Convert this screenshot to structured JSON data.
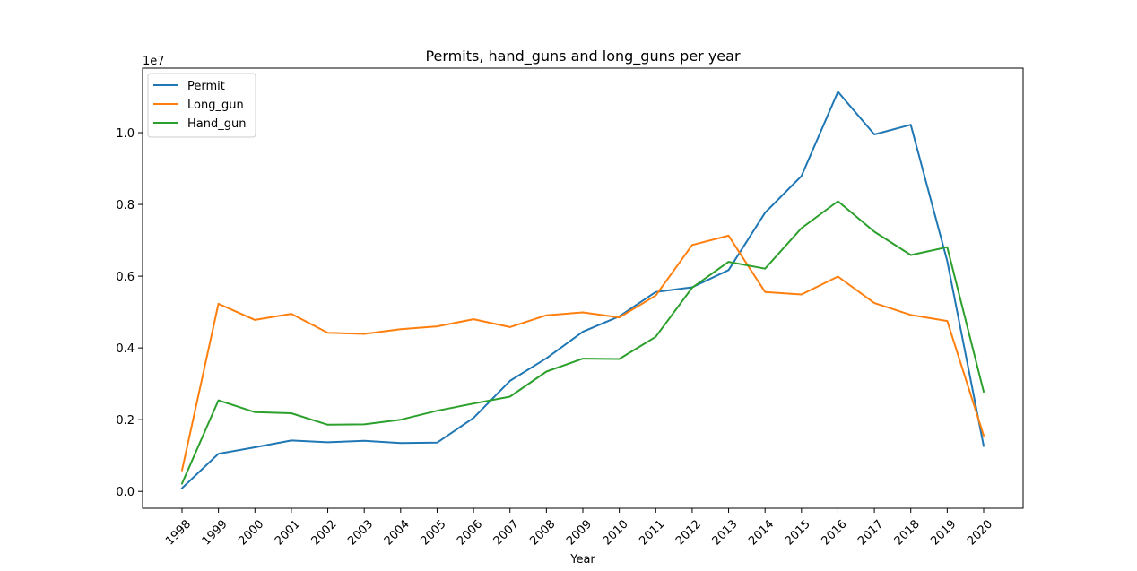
{
  "chart_data": {
    "type": "line",
    "title": "Permits, hand_guns and long_guns per year",
    "xlabel": "Year",
    "ylabel": "",
    "y_scale_label": "1e7",
    "x": [
      "1998",
      "1999",
      "2000",
      "2001",
      "2002",
      "2003",
      "2004",
      "2005",
      "2006",
      "2007",
      "2008",
      "2009",
      "2010",
      "2011",
      "2012",
      "2013",
      "2014",
      "2015",
      "2016",
      "2017",
      "2018",
      "2019",
      "2020"
    ],
    "ylim": [
      -470000,
      11800000
    ],
    "y_ticks": [
      0,
      2000000,
      4000000,
      6000000,
      8000000,
      10000000
    ],
    "y_tick_labels": [
      "0.0",
      "0.2",
      "0.4",
      "0.6",
      "0.8",
      "1.0"
    ],
    "grid": false,
    "legend_position": "upper-left",
    "series": [
      {
        "name": "Permit",
        "color": "#1f77b4",
        "values": [
          90000,
          1050000,
          1230000,
          1420000,
          1370000,
          1410000,
          1350000,
          1360000,
          2050000,
          3080000,
          3710000,
          4450000,
          4880000,
          5560000,
          5690000,
          6170000,
          7770000,
          8790000,
          11140000,
          9950000,
          10220000,
          6420000,
          1270000
        ]
      },
      {
        "name": "Long_gun",
        "color": "#ff7f0e",
        "values": [
          590000,
          5230000,
          4780000,
          4950000,
          4420000,
          4390000,
          4520000,
          4600000,
          4800000,
          4580000,
          4910000,
          4990000,
          4850000,
          5460000,
          6870000,
          7130000,
          5560000,
          5490000,
          5990000,
          5250000,
          4920000,
          4750000,
          1560000
        ]
      },
      {
        "name": "Hand_gun",
        "color": "#2ca02c",
        "values": [
          220000,
          2540000,
          2210000,
          2180000,
          1860000,
          1870000,
          2000000,
          2250000,
          2450000,
          2640000,
          3340000,
          3700000,
          3690000,
          4310000,
          5680000,
          6400000,
          6210000,
          7340000,
          8090000,
          7240000,
          6590000,
          6810000,
          2780000
        ]
      }
    ]
  }
}
